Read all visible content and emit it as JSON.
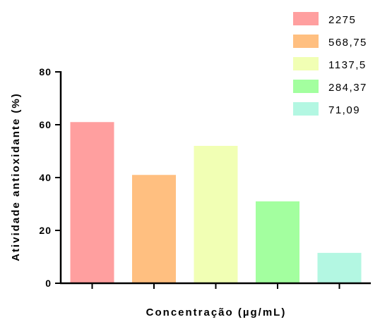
{
  "chart_data": {
    "type": "bar",
    "xlabel": "Concentração (µg/mL)",
    "ylabel": "Atividade antioxidante (%)",
    "ylim": [
      0,
      80
    ],
    "yticks": [
      "0",
      "20",
      "40",
      "60",
      "80"
    ],
    "grid": false,
    "legend_position": "top-right",
    "series": [
      {
        "name": "2275",
        "value": 61.0,
        "color": "#ff9f9f"
      },
      {
        "name": "568,75",
        "value": 41.0,
        "color": "#ffbf80"
      },
      {
        "name": "1137,5",
        "value": 52.0,
        "color": "#f1ffb4"
      },
      {
        "name": "284,37",
        "value": 31.0,
        "color": "#a3ff9f"
      },
      {
        "name": "71,09",
        "value": 11.5,
        "color": "#b3f7e2"
      }
    ]
  }
}
